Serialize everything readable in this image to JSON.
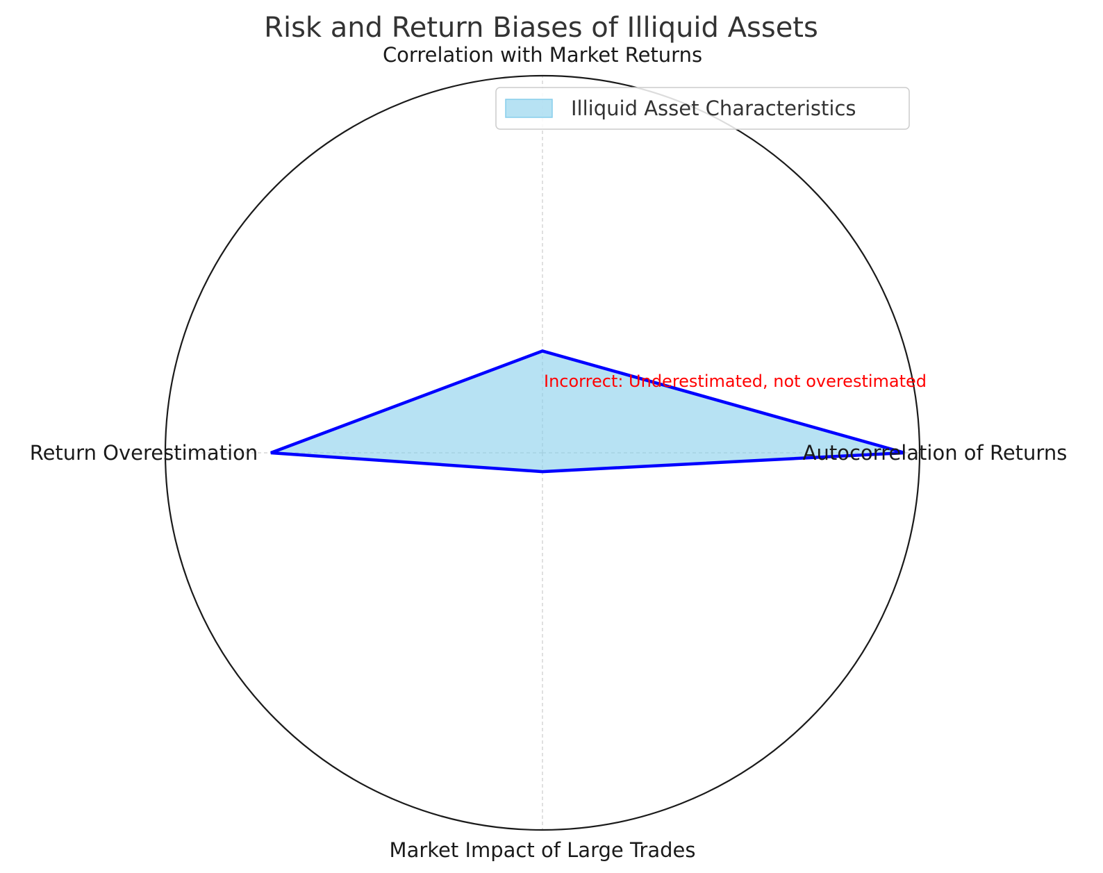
{
  "chart_data": {
    "type": "radar",
    "title": "Risk and Return Biases of Illiquid Assets",
    "categories": [
      "Autocorrelation of Returns",
      "Correlation with Market Returns",
      "Return Overestimation",
      "Market Impact of Large Trades"
    ],
    "series": [
      {
        "name": "Illiquid Asset Characteristics",
        "values": [
          0.96,
          0.27,
          0.72,
          0.05
        ],
        "fill_color": "#87ceeb",
        "line_color": "#0000ff"
      }
    ],
    "rlim": [
      0,
      1
    ],
    "grid": true,
    "radial_tick_labels": false,
    "legend_position": "upper-right",
    "annotations": [
      {
        "text": "Incorrect: Underestimated, not overestimated",
        "color": "#ff0000"
      }
    ]
  }
}
